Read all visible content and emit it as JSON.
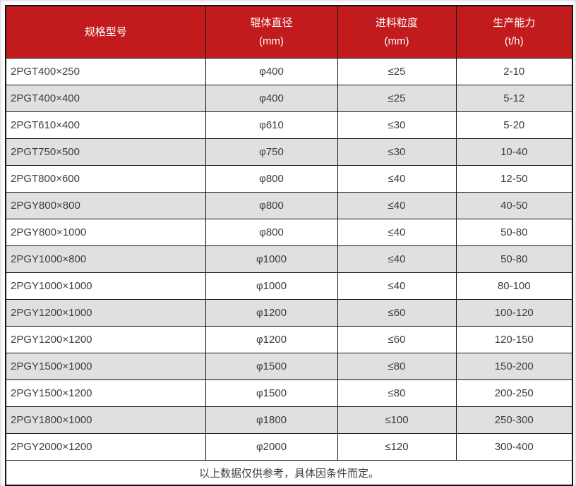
{
  "table": {
    "columns": [
      {
        "line1": "规格型号",
        "line2": ""
      },
      {
        "line1": "辊体直径",
        "line2": "(mm)"
      },
      {
        "line1": "进料粒度",
        "line2": "(mm)"
      },
      {
        "line1": "生产能力",
        "line2": "(t/h)"
      }
    ],
    "rows": [
      [
        "2PGT400×250",
        "φ400",
        "≤25",
        "2-10"
      ],
      [
        "2PGT400×400",
        "φ400",
        "≤25",
        "5-12"
      ],
      [
        "2PGT610×400",
        "φ610",
        "≤30",
        "5-20"
      ],
      [
        "2PGT750×500",
        "φ750",
        "≤30",
        "10-40"
      ],
      [
        "2PGT800×600",
        "φ800",
        "≤40",
        "12-50"
      ],
      [
        "2PGY800×800",
        "φ800",
        "≤40",
        "40-50"
      ],
      [
        "2PGY800×1000",
        "φ800",
        "≤40",
        "50-80"
      ],
      [
        "2PGY1000×800",
        "φ1000",
        "≤40",
        "50-80"
      ],
      [
        "2PGY1000×1000",
        "φ1000",
        "≤40",
        "80-100"
      ],
      [
        "2PGY1200×1000",
        "φ1200",
        "≤60",
        "100-120"
      ],
      [
        "2PGY1200×1200",
        "φ1200",
        "≤60",
        "120-150"
      ],
      [
        "2PGY1500×1000",
        "φ1500",
        "≤80",
        "150-200"
      ],
      [
        "2PGY1500×1200",
        "φ1500",
        "≤80",
        "200-250"
      ],
      [
        "2PGY1800×1000",
        "φ1800",
        "≤100",
        "250-300"
      ],
      [
        "2PGY2000×1200",
        "φ2000",
        "≤120",
        "300-400"
      ]
    ],
    "footer": "以上数据仅供参考，具体因条件而定。"
  },
  "colors": {
    "header_bg": "#c11b1e",
    "header_text": "#ffffff",
    "row_alt_bg": "#e0e0e0",
    "border": "#141414",
    "body_text": "#3d3d3d"
  }
}
